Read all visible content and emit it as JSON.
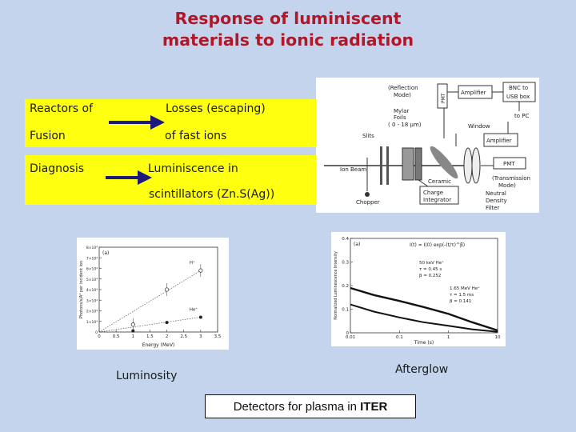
{
  "slide": {
    "title_line1": "Response of luminiscent",
    "title_line2": "materials to ionic radiation",
    "row1": {
      "left_a": "Reactors of",
      "left_b": "Fusion",
      "right_a": "Losses (escaping)",
      "right_b": "of fast ions"
    },
    "row2": {
      "left": "Diagnosis",
      "right_a": "Luminiscence in",
      "right_b": "scintillators (Zn.S(Ag))"
    },
    "caption_luminosity": "Luminosity",
    "caption_afterglow": "Afterglow",
    "footer_prefix": "Detectors for plasma in ",
    "footer_bold": "ITER",
    "colors": {
      "background": "#c3d4ec",
      "title": "#b0182a",
      "band": "#ffff10",
      "arrow": "#1c1b7c"
    }
  },
  "setup_figure": {
    "labels": {
      "reflection": "(Reflection",
      "mode": "Mode)",
      "pmt_top": "PMT",
      "amplifier_top": "Amplifier",
      "bnc": "BNC to",
      "usb": "USB box",
      "to_pc": "to PC",
      "mylar": "Mylar",
      "foils": "Foils",
      "foils_range": "( 0 - 18 µm)",
      "window": "Window",
      "slits": "Slits",
      "amplifier_right": "Amplifier",
      "ion_beam": "Ion Beam",
      "ceramic": "Ceramic",
      "pmt_right": "PMT",
      "transmission": "(Transmission",
      "mode2": "Mode)",
      "chopper": "Chopper",
      "charge": "Charge",
      "integrator": "Integrator",
      "neutral": "Neutral",
      "density": "Density",
      "filter": "Filter"
    }
  },
  "chart_data": [
    {
      "type": "scatter",
      "panel_label": "(a)",
      "xlabel": "Energy (MeV)",
      "ylabel": "Photons/s/A² per incident ion",
      "x_ticks": [
        "0",
        "0.5",
        "1",
        "1.5",
        "2",
        "2.5",
        "3",
        "3.5"
      ],
      "y_ticks": [
        "0",
        "1×10⁴",
        "2×10⁴",
        "3×10⁴",
        "4×10⁴",
        "5×10⁴",
        "6×10⁴",
        "7×10⁴",
        "8×10⁴"
      ],
      "xlim": [
        0,
        3.5
      ],
      "ylim": [
        0,
        80000
      ],
      "series": [
        {
          "name": "H⁺",
          "x": [
            1,
            2,
            3
          ],
          "y": [
            7000,
            40000,
            58000
          ]
        },
        {
          "name": "He⁺",
          "x": [
            1,
            2,
            3
          ],
          "y": [
            1000,
            9000,
            14000
          ]
        }
      ]
    },
    {
      "type": "line",
      "panel_label": "(a)",
      "xlabel": "Time (s)",
      "ylabel": "Normalized Luminescence Intensity",
      "x_ticks": [
        "0.01",
        "0.1",
        "1",
        "10"
      ],
      "y_ticks": [
        "0",
        "0.1",
        "0.2",
        "0.3",
        "0.4"
      ],
      "xlim": [
        0.01,
        10
      ],
      "ylim": [
        0,
        0.4
      ],
      "x_scale": "log",
      "formula": "I(t) = I(0) exp(-(t/τ)^β)",
      "series": [
        {
          "name": "50 keV He⁺",
          "params": [
            "50 keV He⁺",
            "τ = 0.45 s",
            "β = 0.252"
          ],
          "x": [
            0.01,
            0.03,
            0.1,
            0.3,
            1,
            3,
            10
          ],
          "y": [
            0.19,
            0.16,
            0.135,
            0.11,
            0.08,
            0.045,
            0.01
          ]
        },
        {
          "name": "1.65 MeV He⁺",
          "params": [
            "1.65 MeV He⁺",
            "τ = 1.5 ms",
            "β = 0.141"
          ],
          "x": [
            0.01,
            0.03,
            0.1,
            0.3,
            1,
            3,
            10
          ],
          "y": [
            0.12,
            0.09,
            0.065,
            0.045,
            0.03,
            0.015,
            0.004
          ]
        }
      ]
    }
  ]
}
